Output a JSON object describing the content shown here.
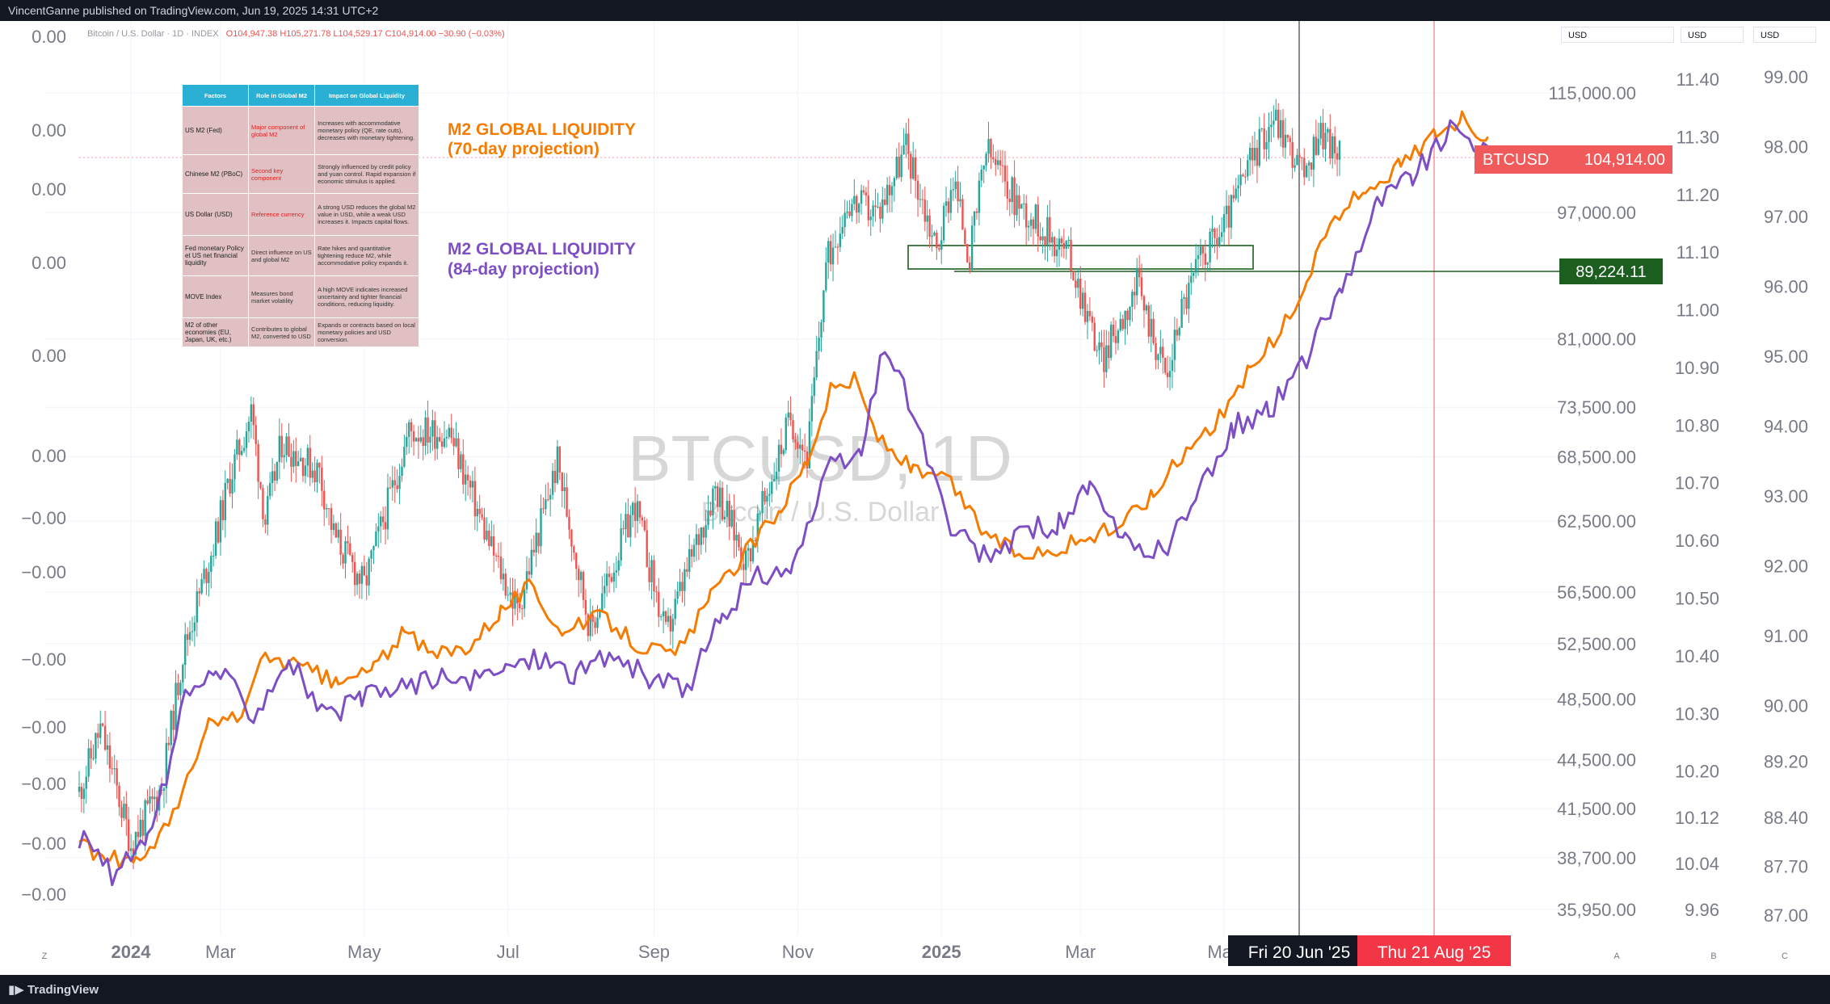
{
  "header": {
    "published": "VincentGanne published on TradingView.com, Jun 19, 2025 14:31 UTC+2",
    "symbol_line": "Bitcoin / U.S. Dollar · 1D · INDEX",
    "ohlc": "O104,947.38  H105,271.78  L104,529.17  C104,914.00  −30.90 (−0.03%)"
  },
  "footer": {
    "brand": "TradingView"
  },
  "watermark": {
    "symbol": "BTCUSD, 1D",
    "name": "Bitcoin / U.S. Dollar"
  },
  "annotations": {
    "m2_70": [
      "M2 GLOBAL LIQUIDITY",
      "(70-day projection)"
    ],
    "m2_84": [
      "M2 GLOBAL LIQUIDITY",
      "(84-day projection)"
    ]
  },
  "table": {
    "headers": [
      "Factors",
      "Role in Global M2",
      "Impact on Global Liquidity"
    ],
    "rows": [
      {
        "factor": "US M2 (Fed)",
        "role": "Major component of global M2",
        "impact": "Increases with accommodative monetary policy (QE, rate cuts), decreases with monetary tightening."
      },
      {
        "factor": "Chinese M2 (PBoC)",
        "role": "Second key component",
        "impact": "Strongly influenced by credit policy and yuan control. Rapid expansion if economic stimulus is applied."
      },
      {
        "factor": "US Dollar (USD)",
        "role": "Reference currency",
        "impact": "A strong USD reduces the global M2 value in USD, while a weak USD increases it. Impacts capital flows."
      },
      {
        "factor": "Fed monetary Policy et US net financial liquidity",
        "role": "Direct influence on US and global M2",
        "impact": "Rate hikes and quantitative tightening reduce M2, while accommodative policy expands it."
      },
      {
        "factor": "MOVE Index",
        "role": "Measures bond market volatility",
        "impact": "A high MOVE indicates increased uncertainty and tighter financial conditions, reducing liquidity."
      },
      {
        "factor": "M2 of other economies (EU, Japan, UK, etc.)",
        "role": "Contributes to global M2, converted to USD",
        "impact": "Expands or contracts based on local monetary policies and USD conversion."
      }
    ]
  },
  "price_labels": {
    "last": {
      "symbol": "BTCUSD",
      "value": "104,914.00"
    },
    "level": "89,224.11"
  },
  "time_labels": {
    "current": "Fri 20 Jun '25",
    "projection": "Thu 21 Aug '25"
  },
  "currency_labels": [
    "USD",
    "USD",
    "USD"
  ],
  "scale_letters": [
    "A",
    "B",
    "C",
    "Z"
  ],
  "colors": {
    "up": "#26a69a",
    "down": "#ef5350",
    "m2_70": "#f57c00",
    "m2_84": "#7e4fc4",
    "level_box": "#1b5e20",
    "last_price": "#f05a5a",
    "projection_line": "#f23645"
  },
  "chart_data": {
    "type": "line",
    "x_ticks": [
      "2024",
      "Mar",
      "May",
      "Jul",
      "Sep",
      "Nov",
      "2025",
      "Mar",
      "May"
    ],
    "x_range": [
      "2024-01-01",
      "2025-09-10"
    ],
    "log_scale": true,
    "axes": {
      "left_ticks": [
        "0.00",
        "0.00",
        "0.00",
        "0.00",
        "0.00",
        "0.00",
        "−0.00",
        "−0.00",
        "−0.00",
        "−0.00",
        "−0.00",
        "−0.00",
        "−0.00"
      ],
      "price_ticks": [
        "115,000.00",
        "97,000.00",
        "81,000.00",
        "73,500.00",
        "68,500.00",
        "62,500.00",
        "56,500.00",
        "52,500.00",
        "48,500.00",
        "44,500.00",
        "41,500.00",
        "38,700.00",
        "35,950.00"
      ],
      "m2a_ticks": [
        "11.40",
        "11.30",
        "11.20",
        "11.10",
        "11.00",
        "10.90",
        "10.80",
        "10.70",
        "10.60",
        "10.50",
        "10.40",
        "10.30",
        "10.20",
        "10.12",
        "10.04",
        "9.96"
      ],
      "m2b_ticks": [
        "99.00",
        "98.00",
        "97.00",
        "96.00",
        "95.00",
        "94.00",
        "93.00",
        "92.00",
        "91.00",
        "90.00",
        "89.20",
        "88.40",
        "87.70",
        "87.00"
      ]
    },
    "series": [
      {
        "name": "BTCUSD",
        "kind": "close",
        "points": [
          [
            "2024-01-01",
            42500
          ],
          [
            "2024-01-10",
            46500
          ],
          [
            "2024-01-23",
            39500
          ],
          [
            "2024-02-05",
            42800
          ],
          [
            "2024-02-14",
            51800
          ],
          [
            "2024-02-28",
            61200
          ],
          [
            "2024-03-05",
            66500
          ],
          [
            "2024-03-14",
            73000
          ],
          [
            "2024-03-20",
            62500
          ],
          [
            "2024-03-27",
            70000
          ],
          [
            "2024-04-12",
            67000
          ],
          [
            "2024-04-18",
            61300
          ],
          [
            "2024-05-01",
            57000
          ],
          [
            "2024-05-20",
            71000
          ],
          [
            "2024-06-06",
            71000
          ],
          [
            "2024-06-24",
            60000
          ],
          [
            "2024-07-05",
            55000
          ],
          [
            "2024-07-22",
            68000
          ],
          [
            "2024-08-05",
            53500
          ],
          [
            "2024-08-24",
            64000
          ],
          [
            "2024-09-06",
            53000
          ],
          [
            "2024-09-27",
            65800
          ],
          [
            "2024-10-10",
            59000
          ],
          [
            "2024-10-29",
            72500
          ],
          [
            "2024-11-05",
            68500
          ],
          [
            "2024-11-13",
            90000
          ],
          [
            "2024-11-22",
            98500
          ],
          [
            "2024-12-05",
            97000
          ],
          [
            "2024-12-17",
            106500
          ],
          [
            "2024-12-30",
            92000
          ],
          [
            "2025-01-06",
            102000
          ],
          [
            "2025-01-13",
            91000
          ],
          [
            "2025-01-20",
            106000
          ],
          [
            "2025-02-03",
            98000
          ],
          [
            "2025-02-24",
            91500
          ],
          [
            "2025-03-04",
            84000
          ],
          [
            "2025-03-10",
            78500
          ],
          [
            "2025-03-25",
            87500
          ],
          [
            "2025-04-07",
            76500
          ],
          [
            "2025-04-12",
            84000
          ],
          [
            "2025-04-22",
            91500
          ],
          [
            "2025-04-30",
            94500
          ],
          [
            "2025-05-12",
            104000
          ],
          [
            "2025-05-22",
            111500
          ],
          [
            "2025-06-05",
            101500
          ],
          [
            "2025-06-10",
            109500
          ],
          [
            "2025-06-19",
            104914
          ]
        ]
      },
      {
        "name": "M2 GLOBAL LIQUIDITY (70-day projection)",
        "points": [
          [
            "2024-01-01",
            10.07
          ],
          [
            "2024-01-12",
            10.05
          ],
          [
            "2024-01-25",
            10.04
          ],
          [
            "2024-02-10",
            10.12
          ],
          [
            "2024-02-25",
            10.28
          ],
          [
            "2024-03-10",
            10.3
          ],
          [
            "2024-03-20",
            10.4
          ],
          [
            "2024-04-05",
            10.38
          ],
          [
            "2024-04-20",
            10.35
          ],
          [
            "2024-05-05",
            10.38
          ],
          [
            "2024-05-18",
            10.44
          ],
          [
            "2024-05-30",
            10.4
          ],
          [
            "2024-06-15",
            10.42
          ],
          [
            "2024-06-28",
            10.48
          ],
          [
            "2024-07-10",
            10.52
          ],
          [
            "2024-07-25",
            10.44
          ],
          [
            "2024-08-10",
            10.47
          ],
          [
            "2024-08-25",
            10.42
          ],
          [
            "2024-09-10",
            10.4
          ],
          [
            "2024-09-25",
            10.5
          ],
          [
            "2024-10-10",
            10.58
          ],
          [
            "2024-10-25",
            10.66
          ],
          [
            "2024-11-05",
            10.74
          ],
          [
            "2024-11-15",
            10.86
          ],
          [
            "2024-11-25",
            10.88
          ],
          [
            "2024-12-05",
            10.78
          ],
          [
            "2024-12-20",
            10.72
          ],
          [
            "2025-01-05",
            10.7
          ],
          [
            "2025-01-18",
            10.62
          ],
          [
            "2025-02-01",
            10.58
          ],
          [
            "2025-02-15",
            10.58
          ],
          [
            "2025-03-01",
            10.6
          ],
          [
            "2025-03-15",
            10.62
          ],
          [
            "2025-04-01",
            10.68
          ],
          [
            "2025-04-15",
            10.76
          ],
          [
            "2025-05-01",
            10.82
          ],
          [
            "2025-05-12",
            10.9
          ],
          [
            "2025-05-25",
            10.96
          ],
          [
            "2025-06-05",
            11.05
          ],
          [
            "2025-06-15",
            11.15
          ],
          [
            "2025-06-30",
            11.21
          ],
          [
            "2025-07-15",
            11.25
          ],
          [
            "2025-07-30",
            11.31
          ],
          [
            "2025-08-10",
            11.33
          ],
          [
            "2025-08-21",
            11.3
          ]
        ]
      },
      {
        "name": "M2 GLOBAL LIQUIDITY (84-day projection)",
        "points": [
          [
            "2024-01-01",
            88.1
          ],
          [
            "2024-01-15",
            87.6
          ],
          [
            "2024-01-30",
            88.0
          ],
          [
            "2024-02-15",
            90.05
          ],
          [
            "2024-02-28",
            90.55
          ],
          [
            "2024-03-15",
            89.9
          ],
          [
            "2024-03-30",
            90.7
          ],
          [
            "2024-04-15",
            89.8
          ],
          [
            "2024-04-30",
            90.1
          ],
          [
            "2024-05-15",
            90.25
          ],
          [
            "2024-05-30",
            90.4
          ],
          [
            "2024-06-15",
            90.3
          ],
          [
            "2024-06-30",
            90.55
          ],
          [
            "2024-07-15",
            90.7
          ],
          [
            "2024-07-30",
            90.45
          ],
          [
            "2024-08-15",
            90.75
          ],
          [
            "2024-08-30",
            90.35
          ],
          [
            "2024-09-15",
            90.25
          ],
          [
            "2024-09-30",
            91.3
          ],
          [
            "2024-10-15",
            91.85
          ],
          [
            "2024-10-30",
            92.0
          ],
          [
            "2024-11-15",
            93.4
          ],
          [
            "2024-11-28",
            93.6
          ],
          [
            "2024-12-08",
            95.2
          ],
          [
            "2024-12-20",
            94.2
          ],
          [
            "2025-01-05",
            92.5
          ],
          [
            "2025-01-20",
            92.1
          ],
          [
            "2025-02-05",
            92.5
          ],
          [
            "2025-02-20",
            92.6
          ],
          [
            "2025-03-05",
            93.1
          ],
          [
            "2025-03-20",
            92.3
          ],
          [
            "2025-04-05",
            92.2
          ],
          [
            "2025-04-20",
            93.0
          ],
          [
            "2025-05-05",
            94.0
          ],
          [
            "2025-05-20",
            94.2
          ],
          [
            "2025-06-05",
            95.0
          ],
          [
            "2025-06-20",
            96.0
          ],
          [
            "2025-07-05",
            97.2
          ],
          [
            "2025-07-20",
            97.6
          ],
          [
            "2025-08-05",
            98.2
          ],
          [
            "2025-08-21",
            98.0
          ]
        ]
      }
    ]
  }
}
